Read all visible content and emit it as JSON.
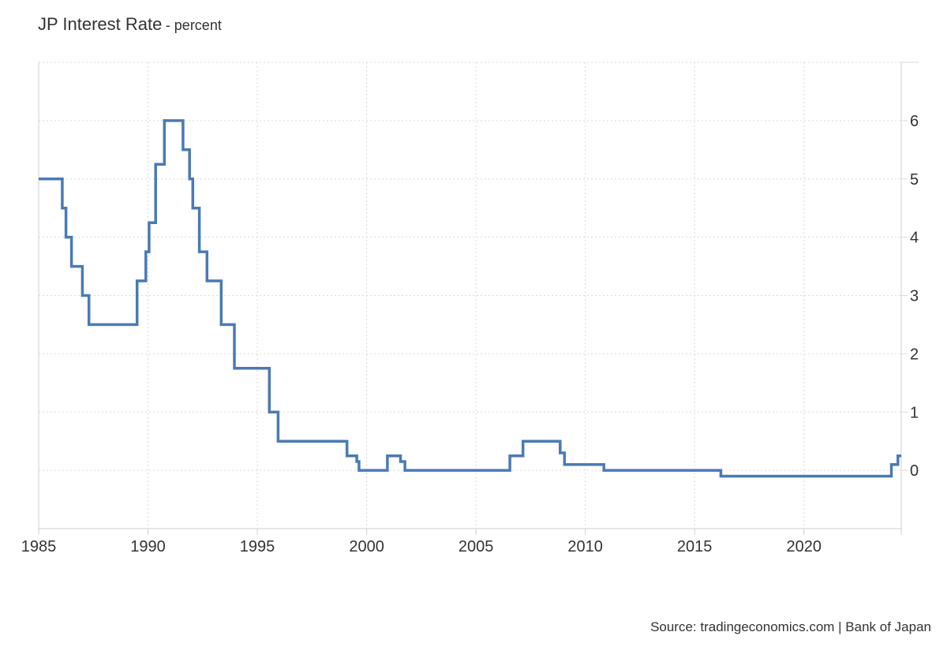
{
  "chart_data": {
    "type": "line",
    "title": "JP Interest Rate",
    "unit_label": "- percent",
    "source": "Source: tradingeconomics.com | Bank of Japan",
    "xlim": [
      1985.0,
      2024.45
    ],
    "ylim": [
      -1.0,
      7.0
    ],
    "x_ticks": [
      1985,
      1990,
      1995,
      2000,
      2005,
      2010,
      2015,
      2020
    ],
    "x_tick_labels": [
      "1985",
      "1990",
      "1995",
      "2000",
      "2005",
      "2010",
      "2015",
      "2020"
    ],
    "y_ticks": [
      0,
      1,
      2,
      3,
      4,
      5,
      6
    ],
    "y_tick_labels": [
      "0",
      "1",
      "2",
      "3",
      "4",
      "5",
      "6"
    ],
    "grid": true,
    "y_axis_position": "right",
    "line_style": "step",
    "series": [
      {
        "color": "#4a7ab5",
        "points": [
          [
            1985.0,
            5.0
          ],
          [
            1986.08,
            4.5
          ],
          [
            1986.25,
            4.0
          ],
          [
            1986.5,
            3.5
          ],
          [
            1987.0,
            3.0
          ],
          [
            1987.3,
            2.5
          ],
          [
            1989.5,
            3.25
          ],
          [
            1989.9,
            3.75
          ],
          [
            1990.05,
            4.25
          ],
          [
            1990.35,
            5.25
          ],
          [
            1990.75,
            6.0
          ],
          [
            1991.6,
            5.5
          ],
          [
            1991.9,
            5.0
          ],
          [
            1992.05,
            4.5
          ],
          [
            1992.35,
            3.75
          ],
          [
            1992.7,
            3.25
          ],
          [
            1993.35,
            2.5
          ],
          [
            1993.95,
            1.75
          ],
          [
            1995.55,
            1.0
          ],
          [
            1995.95,
            0.5
          ],
          [
            1999.1,
            0.25
          ],
          [
            1999.55,
            0.15
          ],
          [
            1999.65,
            0.0
          ],
          [
            2000.95,
            0.25
          ],
          [
            2001.55,
            0.15
          ],
          [
            2001.75,
            0.0
          ],
          [
            2006.55,
            0.25
          ],
          [
            2007.15,
            0.5
          ],
          [
            2008.85,
            0.3
          ],
          [
            2009.05,
            0.1
          ],
          [
            2010.85,
            0.0
          ],
          [
            2016.2,
            -0.1
          ],
          [
            2024.0,
            0.1
          ],
          [
            2024.3,
            0.25
          ],
          [
            2024.45,
            0.25
          ]
        ]
      }
    ]
  }
}
